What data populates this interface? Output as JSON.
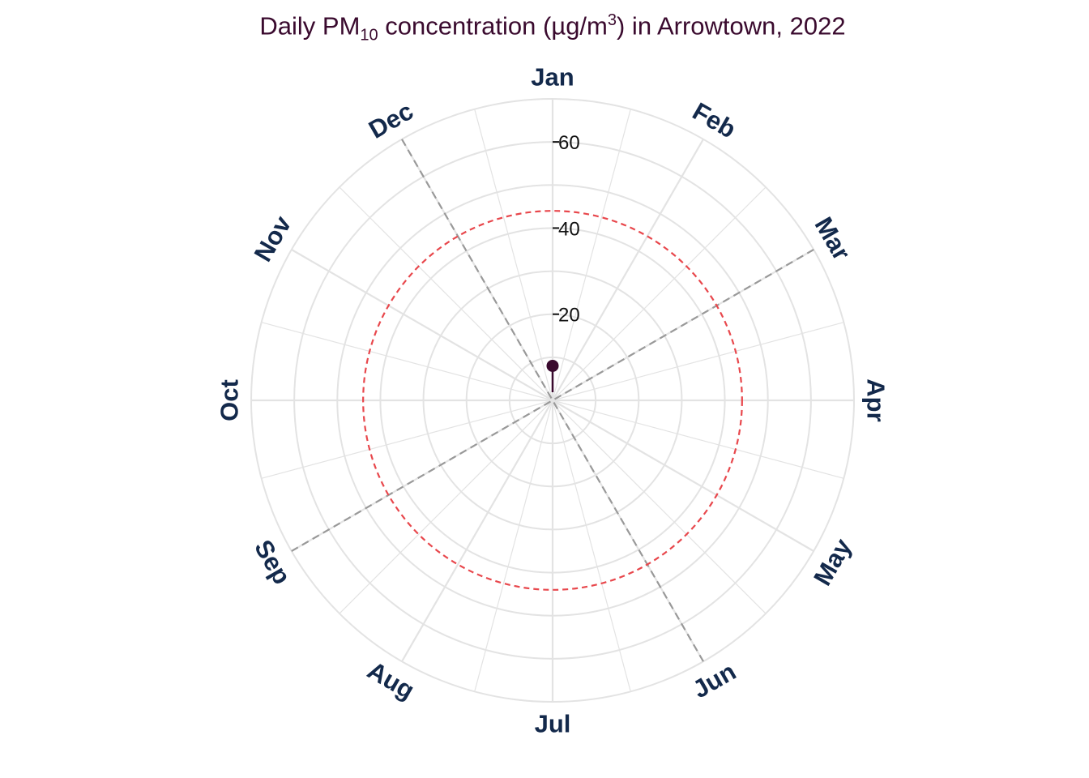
{
  "chart_data": {
    "type": "polar-lollipop",
    "title_parts": {
      "pre": "Daily PM",
      "sub": "10",
      "mid": " concentration (µg/m",
      "sup": "3",
      "post": ") in Arrowtown, 2022"
    },
    "theta_labels": [
      "Jan",
      "Feb",
      "Mar",
      "Apr",
      "May",
      "Jun",
      "Jul",
      "Aug",
      "Sep",
      "Oct",
      "Nov",
      "Dec"
    ],
    "radial_ticks": [
      20,
      40,
      60
    ],
    "radial_max": 70,
    "threshold_value": 44,
    "season_boundaries_month": [
      2.0,
      5.0,
      8.0,
      11.0
    ],
    "points": [
      {
        "day_of_year": 1,
        "pm10": 8
      }
    ],
    "colors": {
      "title": "#3a0a2e",
      "month_labels": "#13294b",
      "grid": "#e3e3e3",
      "threshold": "#e8474c",
      "season_lines": "#999999",
      "point": "#3a0a2e"
    }
  }
}
